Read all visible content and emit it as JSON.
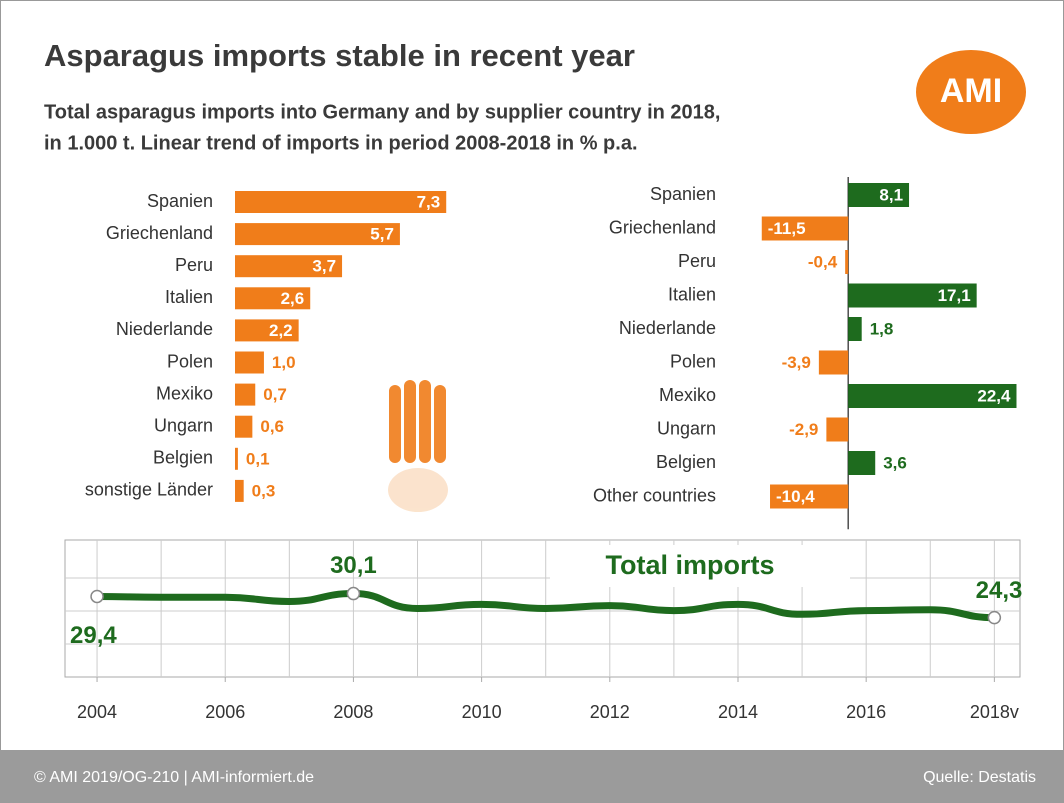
{
  "header": {
    "title": "Asparagus imports stable in recent year",
    "subtitle_lines": [
      "Total asparagus imports into Germany and by supplier country in 2018,",
      "in 1.000 t. Linear trend of imports in period 2008-2018 in % p.a."
    ],
    "logo": "AMI"
  },
  "footer": {
    "left": "© AMI 2019/OG-210 | AMI-informiert.de",
    "right": "Quelle: Destatis"
  },
  "chart_data": [
    {
      "type": "bar",
      "orientation": "horizontal",
      "categories": [
        "Spanien",
        "Griechenland",
        "Peru",
        "Italien",
        "Niederlande",
        "Polen",
        "Mexiko",
        "Ungarn",
        "Belgien",
        "sonstige Länder"
      ],
      "values": [
        7.3,
        5.7,
        3.7,
        2.6,
        2.2,
        1.0,
        0.7,
        0.6,
        0.1,
        0.3
      ],
      "value_labels": [
        "7,3",
        "5,7",
        "3,7",
        "2,6",
        "2,2",
        "1,0",
        "0,7",
        "0,6",
        "0,1",
        "0,3"
      ],
      "color": "#f07d1a",
      "xlim": [
        0,
        7.5
      ]
    },
    {
      "type": "bar",
      "orientation": "horizontal",
      "categories": [
        "Spanien",
        "Griechenland",
        "Peru",
        "Italien",
        "Niederlande",
        "Polen",
        "Mexiko",
        "Ungarn",
        "Belgien",
        "Other countries"
      ],
      "values": [
        8.1,
        -11.5,
        -0.4,
        17.1,
        1.8,
        -3.9,
        22.4,
        -2.9,
        3.6,
        -10.4
      ],
      "value_labels": [
        "8,1",
        "-11,5",
        "-0,4",
        "17,1",
        "1,8",
        "-3,9",
        "22,4",
        "-2,9",
        "3,6",
        "-10,4"
      ],
      "positive_color": "#1e6b1e",
      "negative_color": "#f07d1a",
      "xlim": [
        -12,
        23
      ]
    },
    {
      "type": "line",
      "title": "Total imports",
      "x": [
        2004,
        2005,
        2006,
        2007,
        2008,
        2009,
        2010,
        2011,
        2012,
        2013,
        2014,
        2015,
        2016,
        2017,
        2018
      ],
      "values": [
        29.4,
        29.2,
        29.2,
        28.2,
        30.1,
        26.5,
        27.5,
        26.5,
        27.2,
        26.0,
        27.5,
        25.1,
        26.0,
        26.2,
        24.3
      ],
      "value_labels": [
        "29,4",
        null,
        null,
        null,
        "30,1",
        null,
        null,
        null,
        null,
        null,
        null,
        null,
        null,
        null,
        "24,3"
      ],
      "color": "#1e6b1e",
      "xlim": [
        2003.5,
        2018.4
      ],
      "ylim": [
        10,
        43
      ],
      "xticks": [
        2004,
        2006,
        2008,
        2010,
        2012,
        2014,
        2016,
        {
          "value": 2018,
          "label": "2018v"
        }
      ],
      "grid": true
    }
  ]
}
